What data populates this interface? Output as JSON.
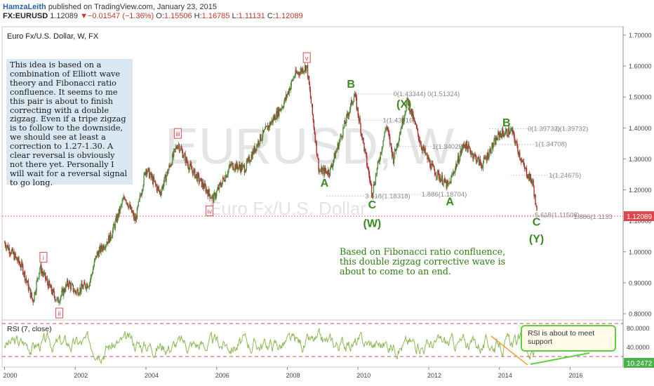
{
  "header": {
    "author": "HamzaLeith",
    "published": "published on TradingView.com, January 23, 2015",
    "symbol": "FX:EURUSD",
    "last": "1.12089",
    "change": "▼−0.01547 (−1.36%)",
    "o_label": "O:",
    "o": "1.15506",
    "h_label": "H:",
    "h": "1.16785",
    "l_label": "L:",
    "l": "1.11131",
    "c_label": "C:",
    "c": "1.12089"
  },
  "chart": {
    "title": "Euro Fx/U.S. Dollar, W, FX",
    "watermark_symbol": "EURUSD, W",
    "watermark_name": "Euro Fx/U.S. Dollar",
    "price_tag": "1.12089",
    "idea_text": "This idea is based on a combination of Elliott wave theory and Fibonacci ratio confluence. It seems to me this pair is about to finish correcting with a double zigzag. Even if a tripe zigzag is to follow to the downside, we should see at least a correction to 1.27-1.30. A clear reversal is obviously not there yet. Personally I will wait for a reversal signal to go long.",
    "green_note": "Based on Fibonacci ratio confluence, this double zigzag corrective wave is about to come to an end."
  },
  "rsi": {
    "title": "RSI (7, close)",
    "value_tag": "10.2472",
    "note": "RSI is about to meet support",
    "ticks": [
      "80.0000",
      "40.0000"
    ]
  },
  "colors": {
    "up": "#4a8f3c",
    "down": "#b03030",
    "wave_label": "#3a8a1f",
    "roman": "#e0474c",
    "rsi_line": "#8db855",
    "fib": "#999999",
    "price_tag": "#e0474c",
    "rsi_tag": "#4ab34a"
  },
  "chart_data": {
    "type": "candlestick",
    "title": "Euro Fx/U.S. Dollar, W, FX",
    "interval": "weekly",
    "x_ticks": [
      "2000",
      "2002",
      "2004",
      "2006",
      "2008",
      "2010",
      "2012",
      "2014",
      "2016"
    ],
    "y_ticks": [
      "1.70000",
      "1.60000",
      "1.50000",
      "1.40000",
      "1.30000",
      "1.20000",
      "1.10000",
      "1.00000",
      "0.90000",
      "0.80000"
    ],
    "ylim": [
      0.78,
      1.72
    ],
    "price_path": [
      {
        "t": 2000.0,
        "p": 1.03
      },
      {
        "t": 2000.5,
        "p": 0.95
      },
      {
        "t": 2000.8,
        "p": 0.84
      },
      {
        "t": 2001.0,
        "p": 0.95
      },
      {
        "t": 2001.3,
        "p": 0.88
      },
      {
        "t": 2001.5,
        "p": 0.84
      },
      {
        "t": 2001.8,
        "p": 0.9
      },
      {
        "t": 2002.0,
        "p": 0.87
      },
      {
        "t": 2002.4,
        "p": 0.9
      },
      {
        "t": 2002.6,
        "p": 0.99
      },
      {
        "t": 2003.0,
        "p": 1.05
      },
      {
        "t": 2003.4,
        "p": 1.18
      },
      {
        "t": 2003.7,
        "p": 1.1
      },
      {
        "t": 2004.0,
        "p": 1.27
      },
      {
        "t": 2004.4,
        "p": 1.19
      },
      {
        "t": 2004.9,
        "p": 1.35
      },
      {
        "t": 2005.2,
        "p": 1.28
      },
      {
        "t": 2005.9,
        "p": 1.17
      },
      {
        "t": 2006.4,
        "p": 1.28
      },
      {
        "t": 2006.8,
        "p": 1.27
      },
      {
        "t": 2007.2,
        "p": 1.36
      },
      {
        "t": 2007.9,
        "p": 1.48
      },
      {
        "t": 2008.2,
        "p": 1.57
      },
      {
        "t": 2008.55,
        "p": 1.6
      },
      {
        "t": 2008.9,
        "p": 1.26
      },
      {
        "t": 2009.2,
        "p": 1.26
      },
      {
        "t": 2009.9,
        "p": 1.51
      },
      {
        "t": 2010.4,
        "p": 1.19
      },
      {
        "t": 2010.8,
        "p": 1.41
      },
      {
        "t": 2011.0,
        "p": 1.3
      },
      {
        "t": 2011.4,
        "p": 1.49
      },
      {
        "t": 2011.8,
        "p": 1.34
      },
      {
        "t": 2012.1,
        "p": 1.27
      },
      {
        "t": 2012.55,
        "p": 1.21
      },
      {
        "t": 2013.0,
        "p": 1.35
      },
      {
        "t": 2013.5,
        "p": 1.28
      },
      {
        "t": 2014.0,
        "p": 1.38
      },
      {
        "t": 2014.35,
        "p": 1.39
      },
      {
        "t": 2014.7,
        "p": 1.27
      },
      {
        "t": 2014.95,
        "p": 1.22
      },
      {
        "t": 2015.06,
        "p": 1.12
      }
    ],
    "wave_labels": [
      {
        "text": "B",
        "t": 2009.8,
        "p": 1.53
      },
      {
        "text": "(X)",
        "t": 2011.3,
        "p": 1.465
      },
      {
        "text": "B",
        "t": 2014.2,
        "p": 1.405
      },
      {
        "text": "A",
        "t": 2009.05,
        "p": 1.21
      },
      {
        "text": "C",
        "t": 2010.4,
        "p": 1.14
      },
      {
        "text": "(W)",
        "t": 2010.4,
        "p": 1.08
      },
      {
        "text": "A",
        "t": 2012.6,
        "p": 1.15
      },
      {
        "text": "C",
        "t": 2015.05,
        "p": 1.085
      },
      {
        "text": "(Y)",
        "t": 2015.05,
        "p": 1.03
      }
    ],
    "roman_labels": [
      {
        "text": "i",
        "t": 2001.1,
        "p": 0.98
      },
      {
        "text": "ii",
        "t": 2001.55,
        "p": 0.8
      },
      {
        "text": "iii",
        "t": 2004.9,
        "p": 1.38
      },
      {
        "text": "iv",
        "t": 2005.8,
        "p": 1.13
      },
      {
        "text": "v",
        "t": 2008.55,
        "p": 1.625
      }
    ],
    "fib_labels": [
      {
        "text": "0(1.43344) 0(1.51324)",
        "t": 2011.0,
        "p": 1.51
      },
      {
        "text": "1(1.43016)",
        "t": 2010.7,
        "p": 1.425
      },
      {
        "text": "1(1.34028)",
        "t": 2012.1,
        "p": 1.34
      },
      {
        "text": "3.618(1.18318)",
        "t": 2010.2,
        "p": 1.18
      },
      {
        "text": "1.886(1.18704)",
        "t": 2011.8,
        "p": 1.185
      },
      {
        "text": "0(1.39732)",
        "t": 2014.8,
        "p": 1.397
      },
      {
        "text": "0(1.39732)",
        "t": 2015.6,
        "p": 1.397
      },
      {
        "text": "1(1.34708)",
        "t": 2015.0,
        "p": 1.347
      },
      {
        "text": "1(1.24675)",
        "t": 2015.4,
        "p": 1.247
      },
      {
        "text": "5.618(1.11508)",
        "t": 2015.0,
        "p": 1.118
      },
      {
        "text": "1.886(1.1133",
        "t": 2016.1,
        "p": 1.113
      }
    ],
    "rsi_ylim": [
      0,
      100
    ],
    "rsi_levels": [
      80,
      20
    ],
    "rsi_last": 10.2472
  }
}
